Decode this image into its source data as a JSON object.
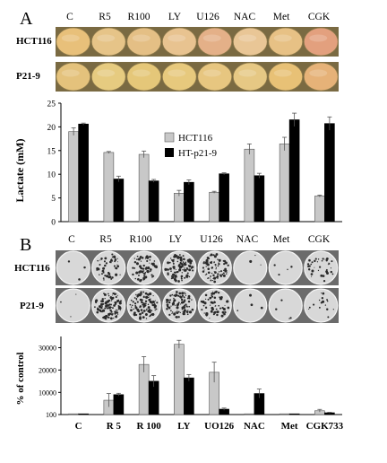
{
  "panel_a_letter": "A",
  "panel_b_letter": "B",
  "conditions_a": [
    "C",
    "R5",
    "R100",
    "LY",
    "U126",
    "NAC",
    "Met",
    "CGK"
  ],
  "conditions_b": [
    "C",
    "R5",
    "R100",
    "LY",
    "U126",
    "NAC",
    "Met",
    "CGK"
  ],
  "row_labels": [
    "HCT116",
    "P21-9"
  ],
  "well_colors": {
    "HCT116": [
      "#e8c07a",
      "#e6c488",
      "#e4bf85",
      "#e8c390",
      "#e4b088",
      "#e9c696",
      "#e7c185",
      "#e3a07e"
    ],
    "P21-9": [
      "#e4c27c",
      "#e6cb80",
      "#e5c779",
      "#e7c97d",
      "#e7c680",
      "#e6c884",
      "#e8c176",
      "#e6b278"
    ]
  },
  "colony_density": {
    "HCT116": [
      0.02,
      0.35,
      0.5,
      0.8,
      0.55,
      0.02,
      0.03,
      0.25
    ],
    "P21-9": [
      0.02,
      0.75,
      0.8,
      0.7,
      0.45,
      0.03,
      0.03,
      0.12
    ]
  },
  "colors": {
    "hct116": "#c8c8c8",
    "htp21": "#000000",
    "plate_bg": "#6b6b6b"
  },
  "chart_data": [
    {
      "type": "bar",
      "categories": [
        "C",
        "R5",
        "R100",
        "LY",
        "U126",
        "NAC",
        "Met",
        "CGK"
      ],
      "ylabel": "Lactate (mM)",
      "ylim": [
        0,
        25
      ],
      "yticks": [
        0,
        5,
        10,
        15,
        20,
        25
      ],
      "legend": "inside-upper-center",
      "series": [
        {
          "name": "HCT116",
          "color": "#c8c8c8",
          "values": [
            19.0,
            14.6,
            14.2,
            6.0,
            6.2,
            15.3,
            16.4,
            5.4
          ],
          "errors": [
            0.8,
            0.2,
            0.7,
            0.6,
            0.2,
            1.1,
            1.4,
            0.2
          ]
        },
        {
          "name": "HT-p21-9",
          "color": "#000000",
          "values": [
            20.6,
            9.0,
            8.6,
            8.3,
            10.1,
            9.7,
            21.5,
            20.7
          ],
          "errors": [
            0.2,
            0.6,
            0.3,
            0.5,
            0.2,
            0.5,
            1.4,
            1.4
          ]
        }
      ]
    },
    {
      "type": "bar",
      "categories": [
        "C",
        "R 5",
        "R 100",
        "LY",
        "UO126",
        "NAC",
        "Met",
        "CGK733"
      ],
      "ylabel": "% of control",
      "ylim": [
        100,
        35000
      ],
      "yticks": [
        100,
        10000,
        20000,
        30000
      ],
      "series": [
        {
          "color": "#c8c8c8",
          "values": [
            100,
            6500,
            22500,
            31500,
            19000,
            100,
            100,
            1800
          ],
          "errors": [
            0,
            3000,
            3500,
            1800,
            4500,
            0,
            0,
            600
          ]
        },
        {
          "color": "#000000",
          "values": [
            100,
            9000,
            15000,
            16500,
            2500,
            9500,
            100,
            900
          ],
          "errors": [
            0,
            600,
            2500,
            1500,
            500,
            2000,
            0,
            200
          ]
        }
      ]
    }
  ]
}
